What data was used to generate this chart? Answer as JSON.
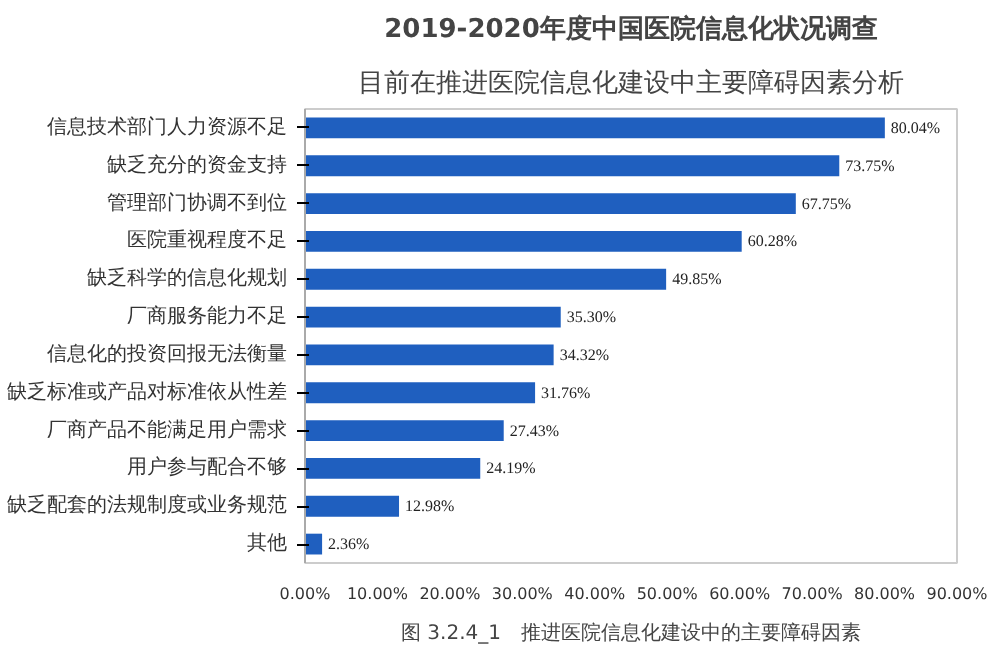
{
  "chart_data": {
    "type": "bar",
    "orientation": "horizontal",
    "title": "2019-2020年度中国医院信息化状况调查",
    "subtitle": "目前在推进医院信息化建设中主要障碍因素分析",
    "categories": [
      "信息技术部门人力资源不足",
      "缺乏充分的资金支持",
      "管理部门协调不到位",
      "医院重视程度不足",
      "缺乏科学的信息化规划",
      "厂商服务能力不足",
      "信息化的投资回报无法衡量",
      "缺乏标准或产品对标准依从性差",
      "厂商产品不能满足用户需求",
      "用户参与配合不够",
      "缺乏配套的法规制度或业务规范",
      "其他"
    ],
    "values": [
      80.04,
      73.75,
      67.75,
      60.28,
      49.85,
      35.3,
      34.32,
      31.76,
      27.43,
      24.19,
      12.98,
      2.36
    ],
    "value_labels": [
      "80.04%",
      "73.75%",
      "67.75%",
      "60.28%",
      "49.85%",
      "35.30%",
      "34.32%",
      "31.76%",
      "27.43%",
      "24.19%",
      "12.98%",
      "2.36%"
    ],
    "color": "#1f5fbf",
    "xlim": [
      0,
      90
    ],
    "xticks": [
      {
        "value": 0,
        "label": "0.00%"
      },
      {
        "value": 10,
        "label": "10.00%"
      },
      {
        "value": 20,
        "label": "20.00%"
      },
      {
        "value": 30,
        "label": "30.00%"
      },
      {
        "value": 40,
        "label": "40.00%"
      },
      {
        "value": 50,
        "label": "50.00%"
      },
      {
        "value": 60,
        "label": "60.00%"
      },
      {
        "value": 70,
        "label": "70.00%"
      },
      {
        "value": 80,
        "label": "80.00%"
      },
      {
        "value": 90,
        "label": "90.00%"
      }
    ],
    "grid": false,
    "annotations": [
      "图 3.2.4_1　推进医院信息化建设中的主要障碍因素"
    ]
  }
}
